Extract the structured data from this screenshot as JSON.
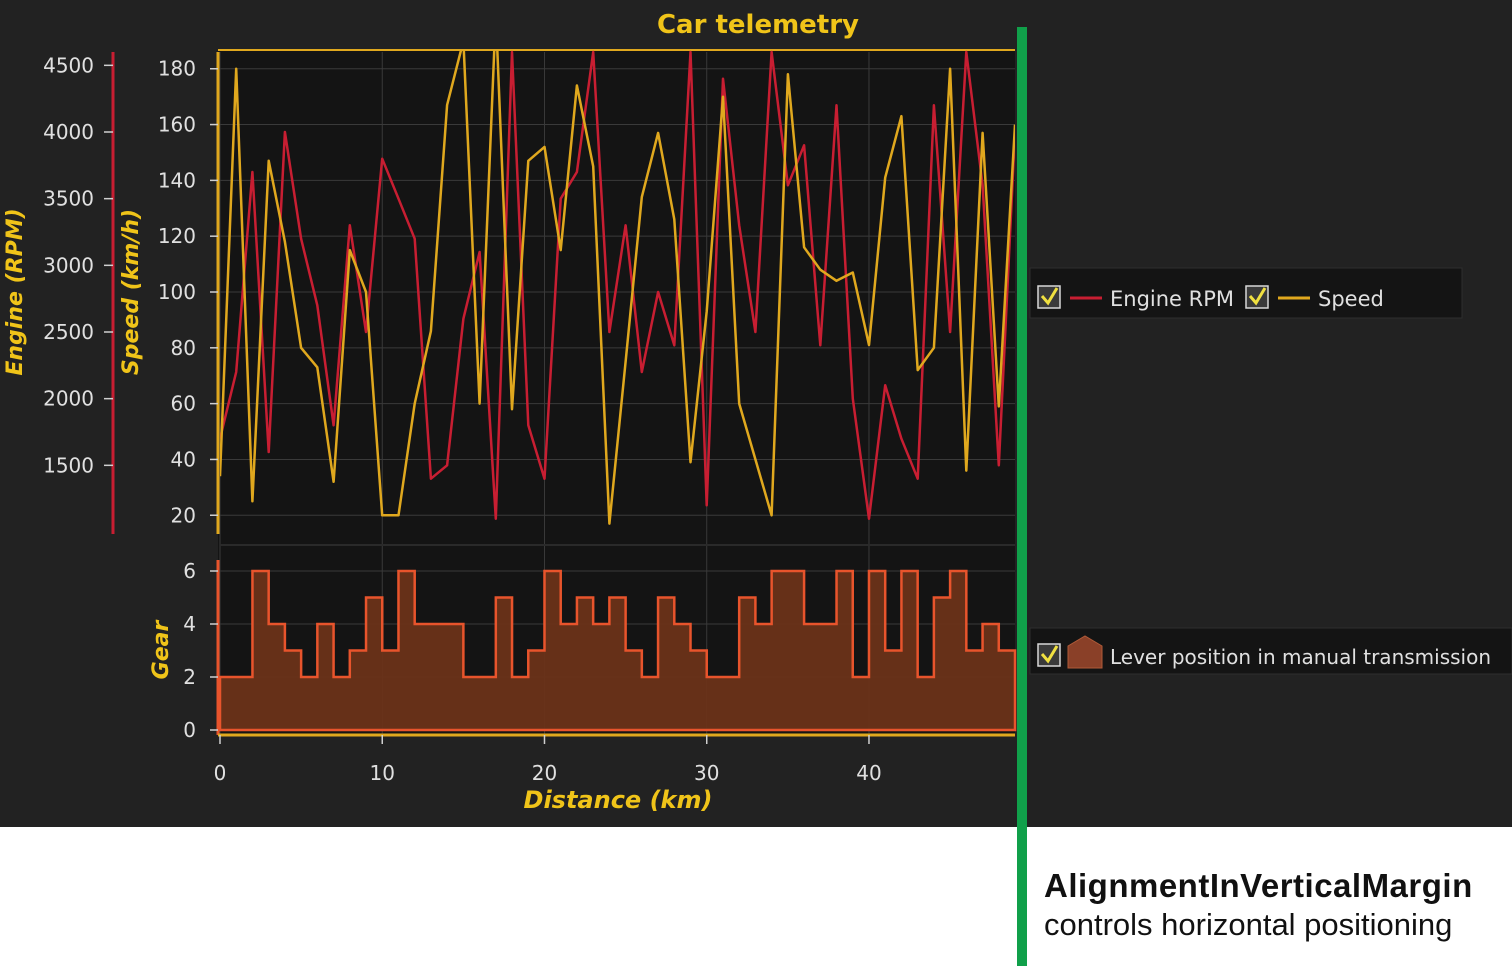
{
  "chart_data": {
    "type": "line",
    "title": "Car telemetry",
    "xlabel": "Distance (km)",
    "xlim": [
      0,
      49
    ],
    "xticks": [
      0,
      10,
      20,
      30,
      40
    ],
    "axes": {
      "rpm": {
        "label": "Engine (RPM)",
        "ylim": [
          1000,
          4600
        ],
        "ticks": [
          1500,
          2000,
          2500,
          3000,
          3500,
          4000,
          4500
        ]
      },
      "speed": {
        "label": "Speed (km/h)",
        "ylim": [
          14,
          186
        ],
        "ticks": [
          20,
          40,
          60,
          80,
          100,
          120,
          140,
          160,
          180
        ]
      },
      "gear": {
        "label": "Gear",
        "ylim": [
          0,
          6
        ],
        "ticks": [
          0,
          2,
          4,
          6
        ]
      }
    },
    "x": [
      0,
      1,
      2,
      3,
      4,
      5,
      6,
      7,
      8,
      9,
      10,
      11,
      12,
      13,
      14,
      15,
      16,
      17,
      18,
      19,
      20,
      21,
      22,
      23,
      24,
      25,
      26,
      27,
      28,
      29,
      30,
      31,
      32,
      33,
      34,
      35,
      36,
      37,
      38,
      39,
      40,
      41,
      42,
      43,
      44,
      45,
      46,
      47,
      48,
      49
    ],
    "series": [
      {
        "name": "Engine RPM",
        "axis": "rpm",
        "color": "#c81e32",
        "values": [
          1700,
          2200,
          3700,
          1600,
          4000,
          3200,
          2700,
          1800,
          3300,
          2500,
          3800,
          3500,
          3200,
          1400,
          1500,
          2600,
          3100,
          1100,
          4600,
          1800,
          1400,
          3500,
          3700,
          4600,
          2500,
          3300,
          2200,
          2800,
          2400,
          4600,
          1200,
          4400,
          3300,
          2500,
          4600,
          3600,
          3900,
          2400,
          4200,
          2000,
          1100,
          2100,
          1700,
          1400,
          4200,
          2500,
          4600,
          3600,
          1500,
          4000
        ]
      },
      {
        "name": "Speed",
        "axis": "speed",
        "color": "#e0a81e",
        "values": [
          34,
          180,
          25,
          147,
          118,
          80,
          73,
          32,
          115,
          100,
          20,
          20,
          60,
          86,
          167,
          190,
          60,
          200,
          58,
          147,
          152,
          115,
          174,
          145,
          17,
          75,
          134,
          157,
          126,
          39,
          93,
          170,
          60,
          40,
          20,
          178,
          116,
          108,
          104,
          107,
          81,
          141,
          163,
          72,
          80,
          180,
          36,
          157,
          59,
          160
        ]
      },
      {
        "name": "Lever position in manual transmission",
        "axis": "gear",
        "color": "#e8542c",
        "type": "area",
        "values": [
          2,
          2,
          6,
          4,
          3,
          2,
          4,
          2,
          3,
          5,
          3,
          6,
          4,
          4,
          4,
          2,
          2,
          5,
          2,
          3,
          6,
          4,
          5,
          4,
          5,
          3,
          2,
          5,
          4,
          3,
          2,
          2,
          5,
          4,
          6,
          6,
          4,
          4,
          6,
          2,
          6,
          3,
          6,
          2,
          5,
          6,
          3,
          4,
          3,
          3
        ]
      }
    ],
    "legend": [
      {
        "items": [
          "Engine RPM",
          "Speed"
        ],
        "placement": "right"
      },
      {
        "items": [
          "Lever position in manual transmission"
        ],
        "placement": "right"
      }
    ]
  },
  "caption": {
    "title": "AlignmentInVerticalMargin",
    "subtitle": "controls horizontal positioning"
  },
  "colors": {
    "background": "#222222",
    "plot": "#141414",
    "rpm": "#c81e32",
    "speed": "#e0a81e",
    "gear": "#e8542c",
    "label": "#f0c419",
    "marker": "#10a04a"
  }
}
